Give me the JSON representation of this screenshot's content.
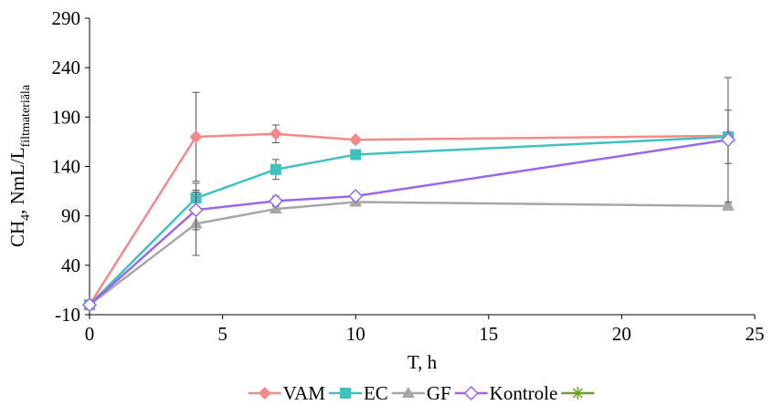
{
  "chart_data": {
    "type": "line",
    "ylabel_parts": [
      "CH",
      "4",
      ", NmL/L",
      "filtmateriāla"
    ],
    "xlabel": "T, h",
    "x": [
      0,
      4,
      7,
      10,
      24
    ],
    "series": [
      {
        "name": "VAM",
        "color": "#f4898a",
        "marker": "diamond",
        "values": [
          0,
          170,
          173,
          167,
          171
        ],
        "errors": [
          0,
          45,
          9,
          3,
          2
        ]
      },
      {
        "name": "EC",
        "color": "#3fc1c0",
        "marker": "square",
        "values": [
          0,
          108,
          137,
          152,
          170
        ],
        "errors": [
          0,
          15,
          10,
          5,
          27
        ]
      },
      {
        "name": "GF",
        "color": "#a6a6a6",
        "marker": "triangle",
        "values": [
          0,
          82,
          97,
          104,
          100
        ],
        "errors": [
          0,
          32,
          3,
          2,
          2
        ]
      },
      {
        "name": "Kontrole",
        "color": "#9966ee",
        "marker": "hollow-diamond",
        "values": [
          0,
          96,
          105,
          110,
          167
        ],
        "errors": [
          0,
          20,
          5,
          3,
          63
        ]
      },
      {
        "name": null,
        "color": "#6aa121",
        "marker": "star",
        "values": [
          null,
          null,
          null,
          null,
          null
        ]
      }
    ],
    "xlim": [
      0,
      25
    ],
    "xticks": [
      0,
      5,
      10,
      15,
      20,
      25
    ],
    "ylim": [
      -10,
      290
    ],
    "yticks": [
      -10,
      40,
      90,
      140,
      190,
      240,
      290
    ],
    "grid": false,
    "legend": "bottom"
  }
}
